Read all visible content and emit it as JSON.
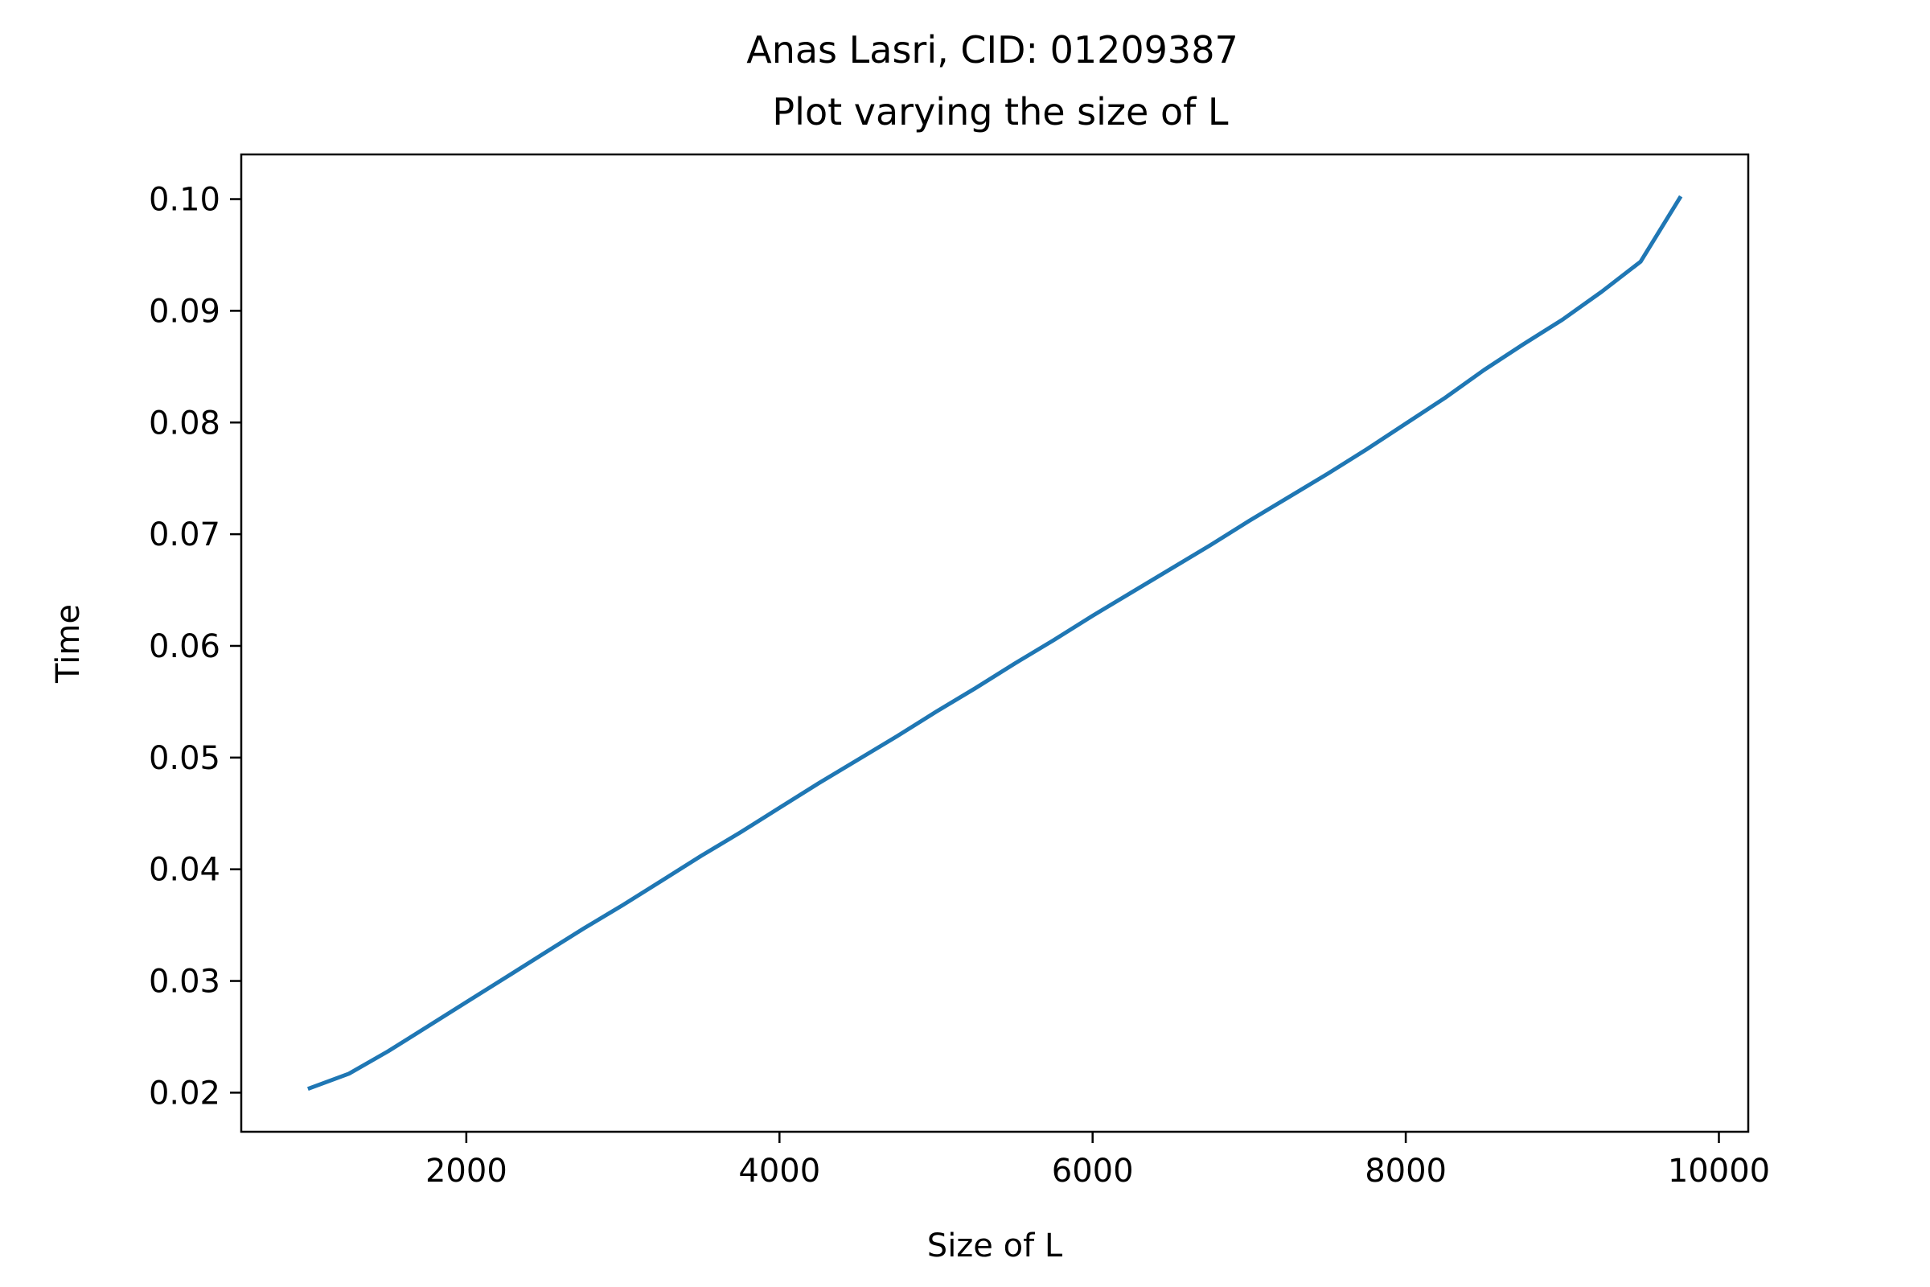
{
  "chart_data": {
    "type": "line",
    "title": "Anas Lasri, CID: 01209387",
    "subtitle": "Plot varying the size of L",
    "xlabel": "Size of L",
    "ylabel": "Time",
    "xlim": [
      562.5,
      10187.5
    ],
    "ylim": [
      0.0165,
      0.104
    ],
    "xticks": [
      2000,
      4000,
      6000,
      8000,
      10000
    ],
    "xtick_labels": [
      "2000",
      "4000",
      "6000",
      "8000",
      "10000"
    ],
    "yticks": [
      0.02,
      0.03,
      0.04,
      0.05,
      0.06,
      0.07,
      0.08,
      0.09,
      0.1
    ],
    "ytick_labels": [
      "0.02",
      "0.03",
      "0.04",
      "0.05",
      "0.06",
      "0.07",
      "0.08",
      "0.09",
      "0.10"
    ],
    "grid": false,
    "series": [
      {
        "name": "time",
        "color": "#1f77b4",
        "x": [
          1000,
          1250,
          1500,
          1750,
          2000,
          2250,
          2500,
          2750,
          3000,
          3250,
          3500,
          3750,
          4000,
          4250,
          4500,
          4750,
          5000,
          5250,
          5500,
          5750,
          6000,
          6250,
          6500,
          6750,
          7000,
          7250,
          7500,
          7750,
          8000,
          8250,
          8500,
          8750,
          9000,
          9250,
          9500,
          9750
        ],
        "y": [
          0.0204,
          0.0217,
          0.0237,
          0.0259,
          0.0281,
          0.0303,
          0.0325,
          0.0347,
          0.0368,
          0.039,
          0.0412,
          0.0433,
          0.0455,
          0.0477,
          0.0498,
          0.0519,
          0.0541,
          0.0562,
          0.0584,
          0.0605,
          0.0627,
          0.0648,
          0.0669,
          0.069,
          0.0712,
          0.0733,
          0.0754,
          0.0776,
          0.0799,
          0.0822,
          0.0847,
          0.087,
          0.0892,
          0.0917,
          0.0944,
          0.1001
        ]
      }
    ]
  }
}
